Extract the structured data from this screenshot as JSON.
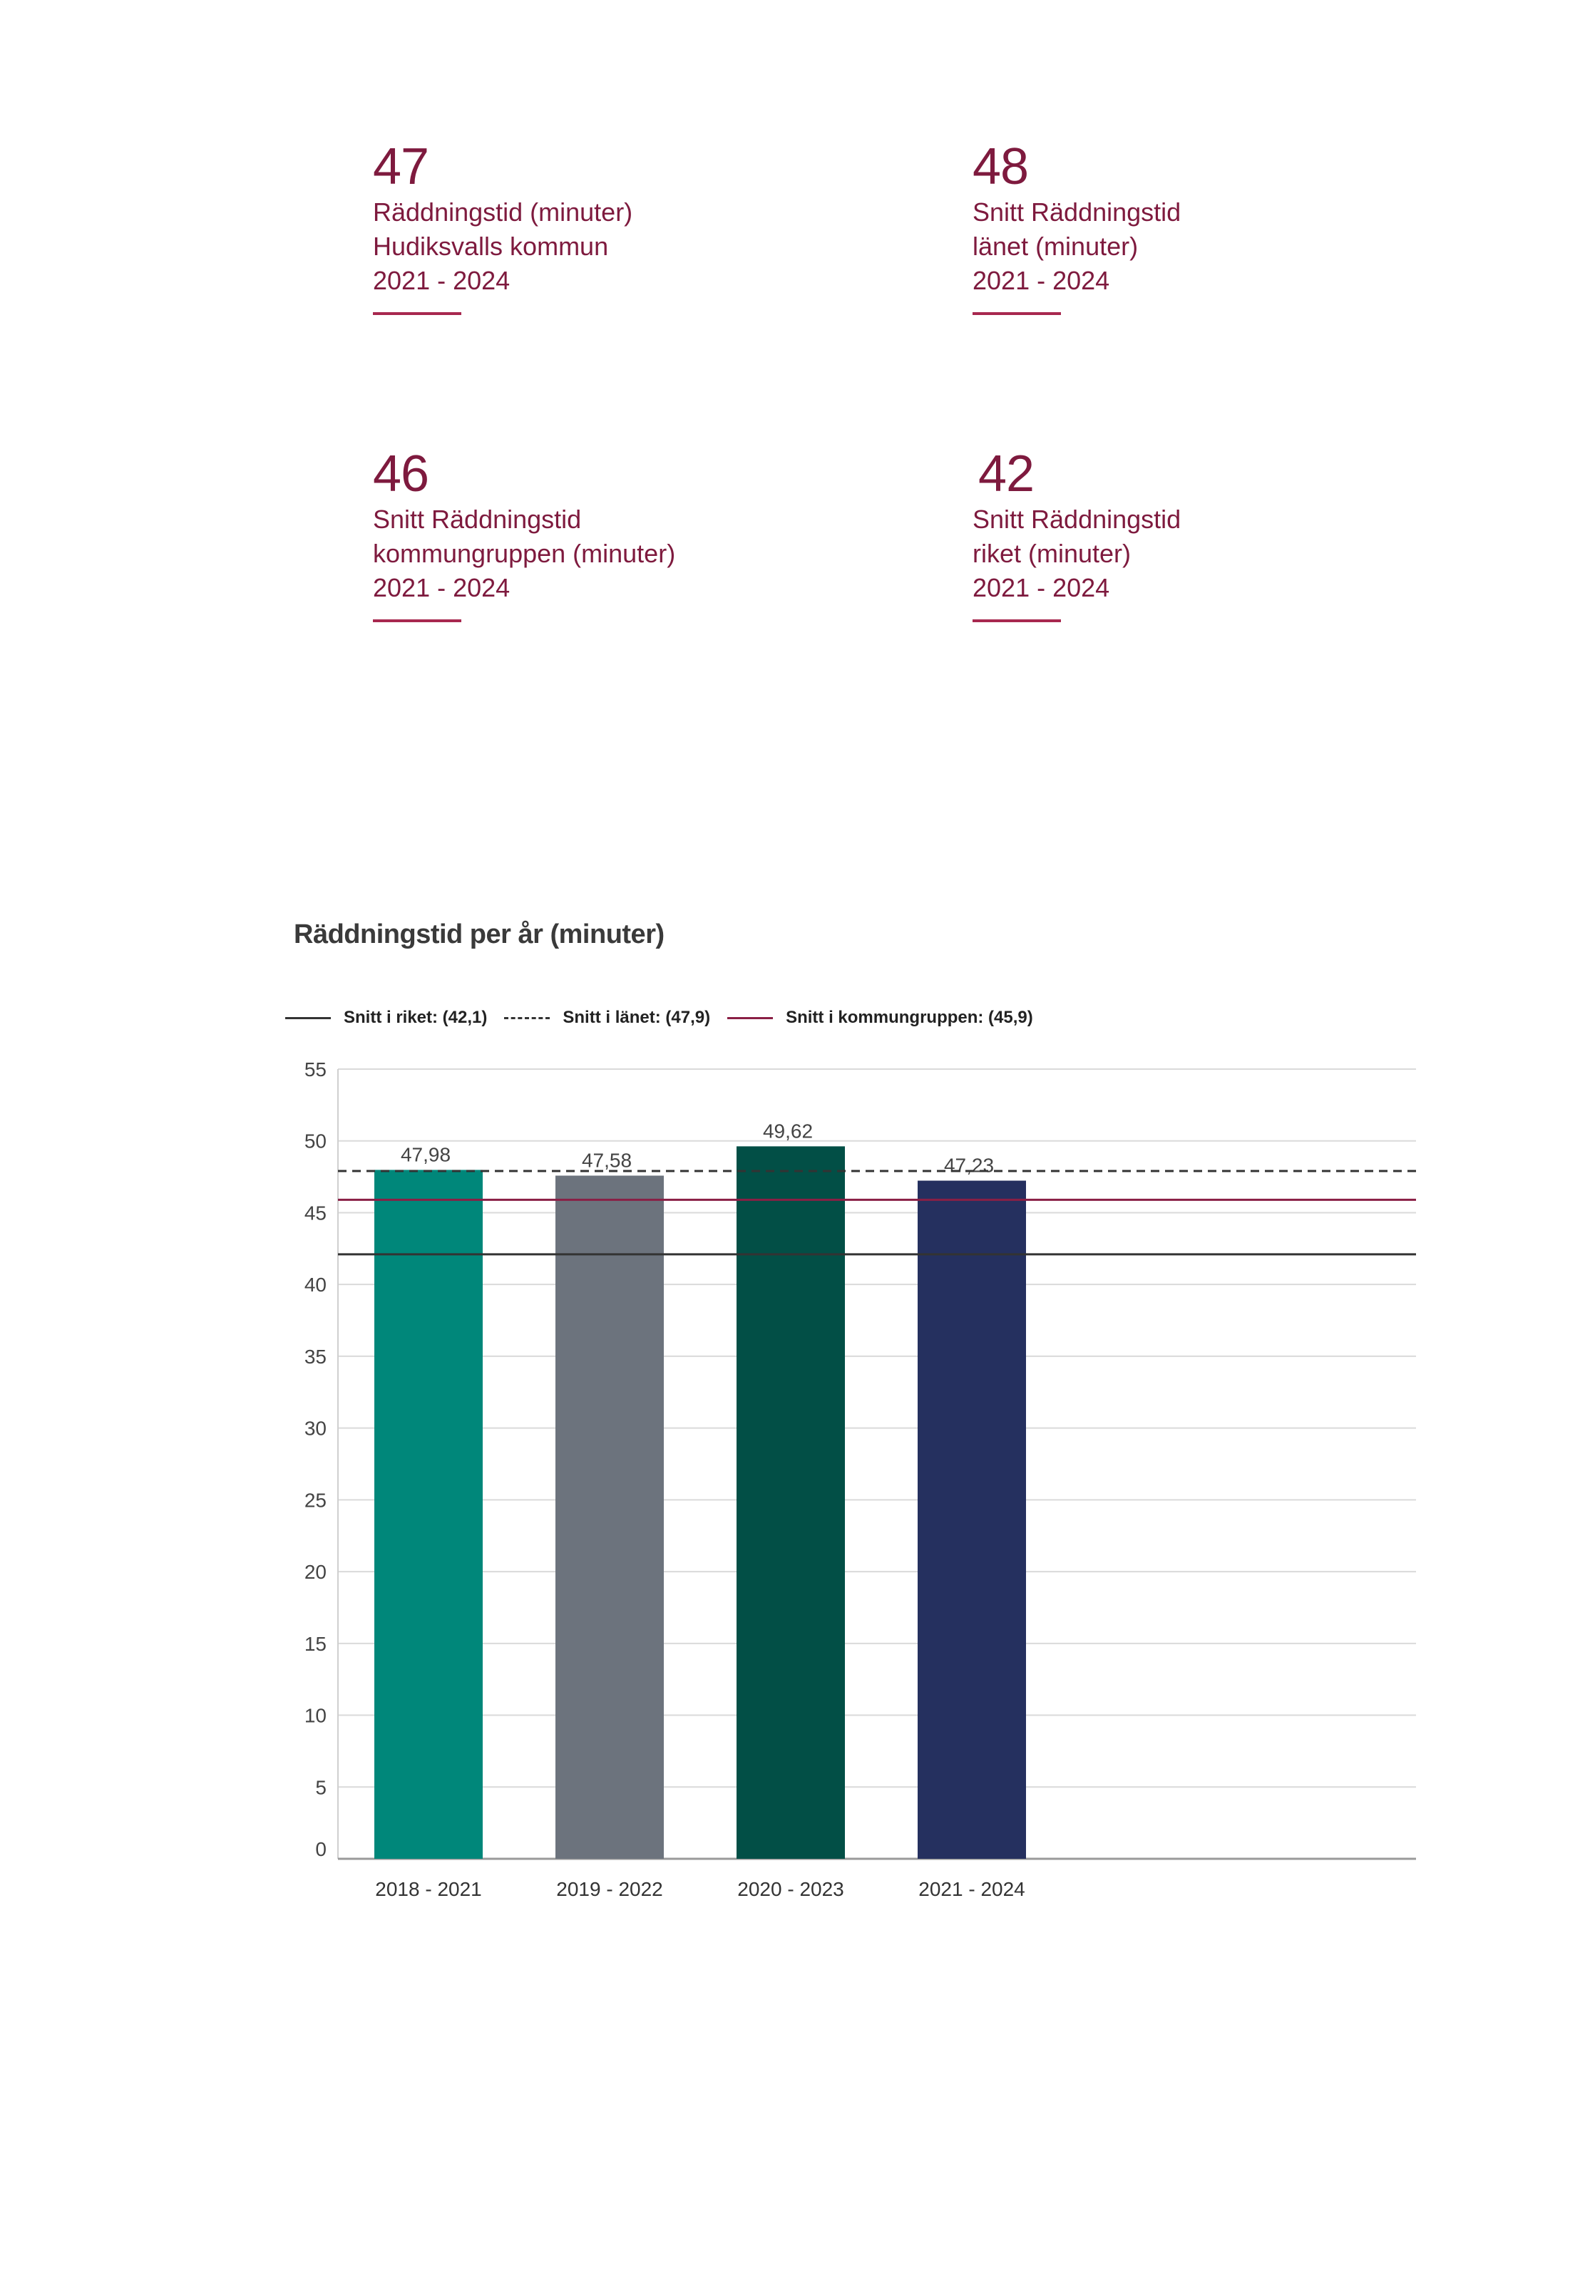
{
  "kpis": [
    {
      "value": "47",
      "lines": [
        "Räddningstid (minuter)",
        "Hudiksvalls kommun",
        "2021 - 2024"
      ]
    },
    {
      "value": "48",
      "lines": [
        "Snitt Räddningstid",
        "länet (minuter)",
        "2021 - 2024"
      ]
    },
    {
      "value": "46",
      "lines": [
        "Snitt Räddningstid",
        "kommungruppen (minuter)",
        "2021 - 2024"
      ]
    },
    {
      "value": "42",
      "lines": [
        "Snitt Räddningstid",
        "riket (minuter)",
        "2021 - 2024"
      ]
    }
  ],
  "chart_data": {
    "type": "bar",
    "title": "Räddningstid per år (minuter)",
    "categories": [
      "2018 - 2021",
      "2019 - 2022",
      "2020 - 2023",
      "2021 - 2024"
    ],
    "values": [
      47.98,
      47.58,
      49.62,
      47.23
    ],
    "value_labels": [
      "47,98",
      "47,58",
      "49,62",
      "47,23"
    ],
    "bar_colors": [
      "#00877a",
      "#6c737d",
      "#024f46",
      "#25305f"
    ],
    "ylim": [
      0,
      55
    ],
    "yticks": [
      "0",
      "5",
      "10",
      "15",
      "20",
      "25",
      "30",
      "35",
      "40",
      "45",
      "50",
      "55"
    ],
    "grid": true,
    "xlabel": "",
    "ylabel": "",
    "reference_lines": [
      {
        "name": "Snitt i riket",
        "label": "Snitt i riket: (42,1)",
        "value": 42.1,
        "style": "solid",
        "color": "#333333"
      },
      {
        "name": "Snitt i länet",
        "label": "Snitt i länet: (47,9)",
        "value": 47.9,
        "style": "dashed",
        "color": "#333333"
      },
      {
        "name": "Snitt i kommungruppen",
        "label": "Snitt i kommungruppen: (45,9)",
        "value": 45.9,
        "style": "solid",
        "color": "#8a1f45"
      }
    ],
    "legend_position": "top-left"
  }
}
